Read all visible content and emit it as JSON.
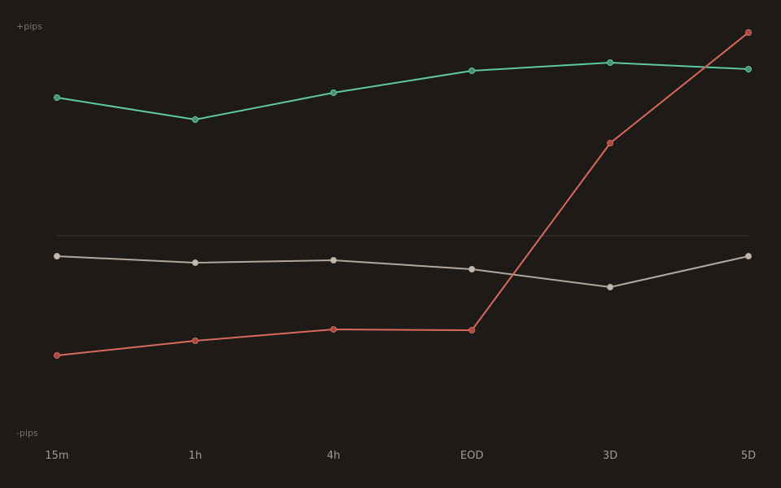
{
  "chart_data": {
    "type": "line",
    "categories": [
      "15m",
      "1h",
      "4h",
      "EOD",
      "3D",
      "5D"
    ],
    "series": [
      {
        "color": "#5ec9a1",
        "marker_color": "#4a8f6e",
        "values": [
          68,
          57.2,
          70.4,
          81.2,
          85.2,
          82
        ]
      },
      {
        "color": "#b3a79c",
        "marker_color": "#c4b8ad",
        "values": [
          -10,
          -13.2,
          -12,
          -16.4,
          -25.2,
          -10
        ]
      },
      {
        "color": "#d9695c",
        "marker_color": "#a84a40",
        "values": [
          -58.8,
          -51.6,
          -46,
          -46.4,
          45.6,
          100
        ]
      }
    ],
    "ylim": [
      -100,
      100
    ],
    "yticks": [
      {
        "value": 100,
        "label": "+pips"
      },
      {
        "value": -100,
        "label": "-pips"
      }
    ],
    "reference_line": 0
  }
}
